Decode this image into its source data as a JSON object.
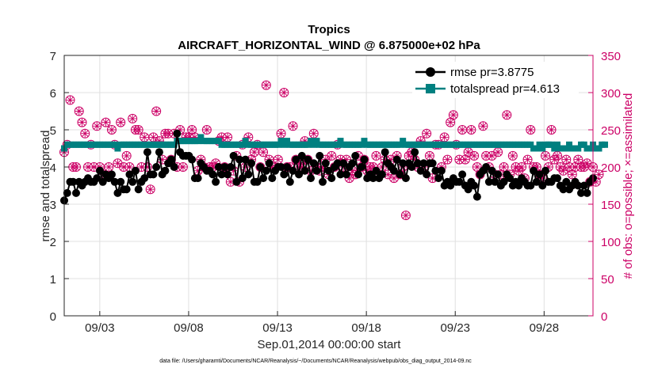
{
  "chart_data": {
    "type": "line",
    "title": "Tropics",
    "subtitle": "AIRCRAFT_HORIZONTAL_WIND @ 6.875000e+02 hPa",
    "xlabel": "Sep.01,2014 00:00:00 start",
    "ylabel": "rmse and totalspread",
    "ylabel_right": "# of obs: o=possible; ×=assimilated",
    "footnote": "data file: /Users/gharamti/Documents/NCAR/Reanalysis/~/Documents/NCAR/Reanalysis/webpub/obs_diag_output_2014-09.nc",
    "xlim": [
      1.0,
      30.75
    ],
    "ylim": [
      0,
      7
    ],
    "ylim_right": [
      0,
      350
    ],
    "x_ticks": [
      {
        "x": 3,
        "label": "09/03"
      },
      {
        "x": 8,
        "label": "09/08"
      },
      {
        "x": 13,
        "label": "09/13"
      },
      {
        "x": 18,
        "label": "09/18"
      },
      {
        "x": 23,
        "label": "09/23"
      },
      {
        "x": 28,
        "label": "09/28"
      }
    ],
    "y_ticks": [
      "0",
      "1",
      "2",
      "3",
      "4",
      "5",
      "6",
      "7"
    ],
    "y_ticks_right": [
      "0",
      "50",
      "100",
      "150",
      "200",
      "250",
      "300",
      "350"
    ],
    "grid": true,
    "legend_position": "top-right",
    "colors": {
      "rmse": "#000000",
      "spread": "#008080",
      "obs": "#cc0066",
      "grid": "#e0e0e0",
      "axis": "#262626"
    },
    "series": [
      {
        "name": "rmse",
        "legend": "rmse pr=3.8775",
        "axis": "left",
        "values": [
          3.1,
          3.3,
          3.6,
          3.6,
          3.3,
          3.6,
          3.5,
          3.6,
          3.7,
          3.6,
          3.6,
          3.7,
          3.9,
          3.6,
          3.8,
          3.7,
          3.8,
          3.6,
          3.3,
          3.6,
          3.4,
          3.4,
          3.8,
          3.6,
          3.9,
          3.4,
          3.6,
          3.7,
          4.4,
          3.8,
          3.8,
          4.0,
          4.4,
          3.8,
          3.9,
          4.1,
          4.2,
          4.0,
          4.9,
          4.4,
          4.3,
          4.3,
          4.3,
          4.2,
          3.7,
          3.7,
          4.1,
          4.0,
          3.9,
          3.9,
          3.8,
          3.6,
          4.0,
          3.8,
          4.0,
          3.8,
          4.0,
          4.3,
          3.6,
          4.2,
          3.7,
          4.2,
          3.8,
          4.1,
          3.6,
          3.6,
          4.0,
          3.7,
          3.9,
          4.1,
          3.7,
          3.9,
          4.0,
          4.0,
          3.8,
          4.0,
          3.6,
          3.9,
          4.2,
          3.8,
          4.3,
          3.9,
          4.2,
          3.7,
          4.1,
          3.9,
          4.3,
          3.6,
          4.1,
          3.9,
          3.7,
          4.0,
          4.1,
          3.8,
          4.1,
          3.8,
          4.0,
          4.1,
          4.3,
          3.8,
          4.0,
          4.2,
          3.7,
          3.8,
          3.7,
          3.9,
          3.7,
          3.8,
          4.4,
          4.1,
          4.0,
          3.9,
          4.2,
          3.8,
          4.1,
          3.7,
          4.1,
          4.0,
          4.4,
          4.1,
          3.9,
          4.1,
          3.8,
          4.1,
          4.1,
          3.9,
          3.7,
          3.9,
          3.5,
          3.6,
          3.5,
          3.7,
          3.6,
          3.6,
          3.8,
          3.5,
          3.4,
          3.6,
          3.5,
          3.2,
          3.8,
          3.9,
          4.0,
          3.6,
          3.9,
          3.6,
          3.8,
          3.5,
          3.6,
          3.8,
          3.7,
          3.5,
          3.6,
          3.5,
          3.7,
          3.6,
          3.5,
          3.5,
          3.9,
          3.6,
          3.8,
          3.5,
          3.9,
          3.6,
          3.6,
          3.7,
          3.7,
          3.5,
          3.4,
          3.6,
          3.4,
          3.5,
          3.6,
          3.5,
          3.3,
          3.5,
          3.3,
          3.6,
          3.7
        ]
      },
      {
        "name": "totalspread",
        "legend": "totalspread pr=4.613",
        "axis": "left",
        "values": [
          4.5,
          4.6,
          4.6,
          4.6,
          4.6,
          4.6,
          4.6,
          4.6,
          4.6,
          4.6,
          4.6,
          4.6,
          4.6,
          4.6,
          4.6,
          4.6,
          4.6,
          4.6,
          4.5,
          4.6,
          4.6,
          4.6,
          4.6,
          4.6,
          4.6,
          4.6,
          4.6,
          4.6,
          4.6,
          4.6,
          4.6,
          4.6,
          4.6,
          4.6,
          4.6,
          4.6,
          4.6,
          4.6,
          4.7,
          4.7,
          4.7,
          4.7,
          4.7,
          4.7,
          4.7,
          4.7,
          4.8,
          4.7,
          4.7,
          4.7,
          4.7,
          4.7,
          4.7,
          4.6,
          4.6,
          4.6,
          4.6,
          4.6,
          4.6,
          4.6,
          4.6,
          4.7,
          4.6,
          4.6,
          4.6,
          4.6,
          4.6,
          4.6,
          4.6,
          4.6,
          4.6,
          4.6,
          4.6,
          4.7,
          4.6,
          4.7,
          4.6,
          4.6,
          4.6,
          4.6,
          4.6,
          4.6,
          4.6,
          4.7,
          4.6,
          4.7,
          4.6,
          4.6,
          4.6,
          4.6,
          4.6,
          4.6,
          4.6,
          4.7,
          4.6,
          4.6,
          4.6,
          4.6,
          4.6,
          4.6,
          4.6,
          4.7,
          4.6,
          4.6,
          4.6,
          4.6,
          4.6,
          4.6,
          4.6,
          4.6,
          4.6,
          4.6,
          4.6,
          4.6,
          4.7,
          4.6,
          4.6,
          4.6,
          4.6,
          4.6,
          4.6,
          4.6,
          4.6,
          4.6,
          4.6,
          4.6,
          4.6,
          4.6,
          4.6,
          4.6,
          4.6,
          4.6,
          4.6,
          4.6,
          4.6,
          4.6,
          4.6,
          4.6,
          4.6,
          4.6,
          4.6,
          4.6,
          4.6,
          4.6,
          4.6,
          4.6,
          4.6,
          4.6,
          4.6,
          4.6,
          4.6,
          4.6,
          4.6,
          4.6,
          4.6,
          4.6,
          4.6,
          4.6,
          4.5,
          4.5,
          4.6,
          4.5,
          4.6,
          4.6,
          4.6,
          4.5,
          4.6,
          4.5,
          4.5,
          4.5,
          4.6,
          4.5,
          4.5,
          4.5,
          4.6,
          4.6,
          4.5,
          4.5,
          4.6,
          4.5,
          4.5,
          4.6,
          4.6
        ]
      },
      {
        "name": "obs_possible",
        "axis": "right",
        "marker": "circle",
        "values": [
          220,
          230,
          290,
          200,
          200,
          275,
          260,
          245,
          200,
          230,
          200,
          255,
          200,
          190,
          260,
          200,
          250,
          230,
          205,
          260,
          200,
          215,
          200,
          265,
          250,
          250,
          200,
          240,
          200,
          170,
          240,
          275,
          235,
          210,
          245,
          245,
          210,
          245,
          200,
          250,
          200,
          240,
          240,
          250,
          240,
          195,
          210,
          200,
          250,
          200,
          200,
          205,
          235,
          240,
          200,
          240,
          180,
          195,
          215,
          180,
          230,
          200,
          240,
          210,
          220,
          230,
          200,
          220,
          310,
          210,
          200,
          200,
          210,
          245,
          300,
          200,
          200,
          255,
          210,
          200,
          200,
          235,
          210,
          195,
          245,
          200,
          195,
          200,
          210,
          190,
          215,
          200,
          230,
          210,
          200,
          210,
          185,
          195,
          190,
          215,
          200,
          210,
          195,
          200,
          200,
          215,
          190,
          200,
          210,
          190,
          210,
          185,
          215,
          190,
          200,
          135,
          215,
          220,
          210,
          200,
          235,
          200,
          245,
          215,
          185,
          230,
          230,
          200,
          240,
          210,
          260,
          270,
          230,
          210,
          250,
          210,
          220,
          250,
          215,
          200,
          190,
          255,
          215,
          200,
          215,
          190,
          220,
          190,
          200,
          270,
          190,
          215,
          200,
          195,
          200,
          185,
          210,
          250,
          200,
          200,
          190,
          185,
          215,
          200,
          250,
          210,
          215,
          200,
          195,
          210,
          200,
          190,
          200,
          210,
          200,
          200,
          205,
          180,
          200,
          180,
          190
        ]
      },
      {
        "name": "obs_assimilated",
        "axis": "right",
        "marker": "cross",
        "values": [
          220,
          230,
          290,
          200,
          200,
          275,
          260,
          245,
          200,
          230,
          200,
          255,
          200,
          190,
          260,
          200,
          250,
          230,
          205,
          260,
          200,
          215,
          200,
          265,
          250,
          250,
          200,
          240,
          200,
          170,
          240,
          275,
          235,
          210,
          245,
          245,
          210,
          245,
          200,
          250,
          200,
          240,
          240,
          250,
          240,
          195,
          210,
          200,
          250,
          200,
          200,
          205,
          235,
          240,
          200,
          240,
          180,
          195,
          215,
          180,
          230,
          200,
          240,
          210,
          220,
          230,
          200,
          220,
          310,
          210,
          200,
          200,
          210,
          245,
          300,
          200,
          200,
          255,
          210,
          200,
          200,
          235,
          210,
          195,
          245,
          200,
          195,
          200,
          210,
          190,
          215,
          200,
          230,
          210,
          200,
          210,
          185,
          195,
          190,
          215,
          200,
          210,
          195,
          200,
          200,
          215,
          190,
          200,
          210,
          190,
          210,
          185,
          215,
          190,
          200,
          135,
          215,
          220,
          210,
          200,
          235,
          200,
          245,
          215,
          185,
          230,
          230,
          200,
          240,
          210,
          260,
          270,
          230,
          210,
          250,
          210,
          220,
          250,
          215,
          200,
          190,
          255,
          215,
          200,
          215,
          190,
          220,
          190,
          200,
          270,
          190,
          215,
          200,
          195,
          200,
          185,
          210,
          250,
          200,
          200,
          190,
          185,
          215,
          200,
          250,
          210,
          215,
          200,
          195,
          210,
          200,
          190,
          200,
          210,
          200,
          200,
          205,
          180,
          200,
          180,
          190
        ]
      }
    ]
  }
}
